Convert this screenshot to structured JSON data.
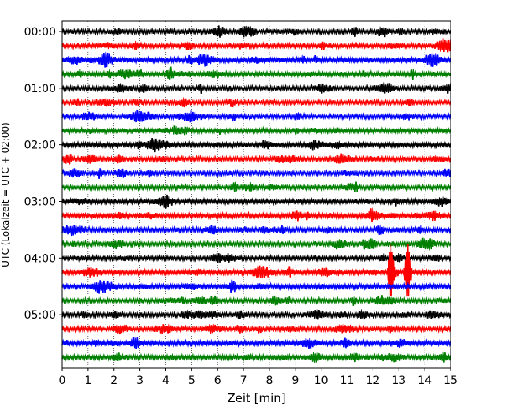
{
  "chart_data": {
    "type": "line",
    "title": "",
    "xlabel": "Zeit  [min]",
    "ylabel": "UTC (Lokalzeit = UTC + 02:00)",
    "xlim": [
      0,
      15
    ],
    "x_ticks": [
      0,
      1,
      2,
      3,
      4,
      5,
      6,
      7,
      8,
      9,
      10,
      11,
      12,
      13,
      14,
      15
    ],
    "y_tick_labels": [
      "00:00",
      "01:00",
      "02:00",
      "03:00",
      "04:00",
      "05:00"
    ],
    "trace_interval_minutes": 15,
    "trace_count": 24,
    "trace_colors": [
      "#000000",
      "#ff0000",
      "#0000ff",
      "#008000"
    ],
    "grid": "vertical dotted lines at each minute",
    "legend": "none",
    "traces": [
      {
        "start": "00:00",
        "color": "#000000"
      },
      {
        "start": "00:15",
        "color": "#ff0000"
      },
      {
        "start": "00:30",
        "color": "#0000ff"
      },
      {
        "start": "00:45",
        "color": "#008000"
      },
      {
        "start": "01:00",
        "color": "#000000"
      },
      {
        "start": "01:15",
        "color": "#ff0000"
      },
      {
        "start": "01:30",
        "color": "#0000ff"
      },
      {
        "start": "01:45",
        "color": "#008000"
      },
      {
        "start": "02:00",
        "color": "#000000"
      },
      {
        "start": "02:15",
        "color": "#ff0000"
      },
      {
        "start": "02:30",
        "color": "#0000ff"
      },
      {
        "start": "02:45",
        "color": "#008000"
      },
      {
        "start": "03:00",
        "color": "#000000"
      },
      {
        "start": "03:15",
        "color": "#ff0000"
      },
      {
        "start": "03:30",
        "color": "#0000ff"
      },
      {
        "start": "03:45",
        "color": "#008000"
      },
      {
        "start": "04:00",
        "color": "#000000"
      },
      {
        "start": "04:15",
        "color": "#ff0000",
        "events": [
          {
            "minute": 12.7
          },
          {
            "minute": 13.35
          }
        ]
      },
      {
        "start": "04:30",
        "color": "#0000ff"
      },
      {
        "start": "04:45",
        "color": "#008000"
      },
      {
        "start": "05:00",
        "color": "#000000"
      },
      {
        "start": "05:15",
        "color": "#ff0000"
      },
      {
        "start": "05:30",
        "color": "#0000ff"
      },
      {
        "start": "05:45",
        "color": "#008000"
      }
    ]
  }
}
